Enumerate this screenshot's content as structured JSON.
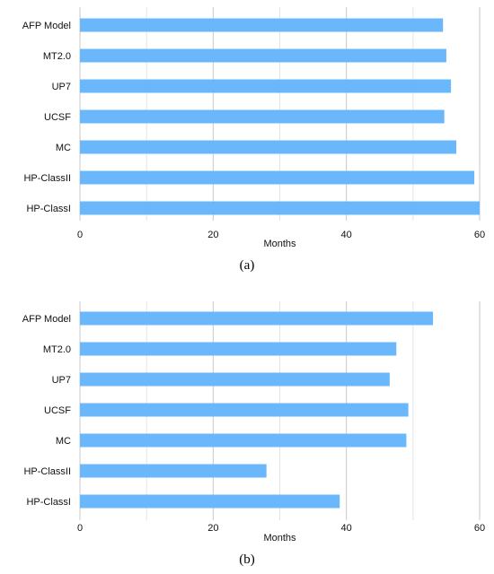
{
  "panels": [
    {
      "caption": "(a)",
      "chart_data": {
        "type": "bar",
        "orientation": "horizontal",
        "categories": [
          "AFP Model",
          "MT2.0",
          "UP7",
          "UCSF",
          "MC",
          "HP-ClassII",
          "HP-ClassI"
        ],
        "values": [
          54.5,
          55,
          55.7,
          54.7,
          56.5,
          59.2,
          60
        ],
        "xlabel": "Months",
        "ylabel": "",
        "xlim": [
          0,
          60
        ],
        "xticks": [
          0,
          20,
          40,
          60
        ],
        "grid": true,
        "bar_color": "#6ab8fb"
      }
    },
    {
      "caption": "(b)",
      "chart_data": {
        "type": "bar",
        "orientation": "horizontal",
        "categories": [
          "AFP Model",
          "MT2.0",
          "UP7",
          "UCSF",
          "MC",
          "HP-ClassII",
          "HP-ClassI"
        ],
        "values": [
          53,
          47.5,
          46.5,
          49.3,
          49,
          28,
          39
        ],
        "xlabel": "Months",
        "ylabel": "",
        "xlim": [
          0,
          60
        ],
        "xticks": [
          0,
          20,
          40,
          60
        ],
        "grid": true,
        "bar_color": "#6ab8fb"
      }
    }
  ]
}
